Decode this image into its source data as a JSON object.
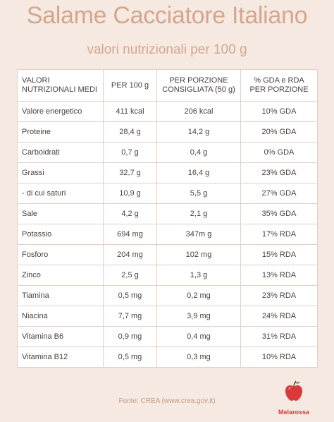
{
  "header": {
    "title": "Salame Cacciatore Italiano",
    "subtitle": "valori nutrizionali per 100 g"
  },
  "table": {
    "columns": [
      "VALORI NUTRIZIONALI MEDI",
      "PER 100 g",
      "PER PORZIONE CONSIGLIATA (50 g)",
      "% GDA e RDA PER PORZIONE"
    ],
    "rows": [
      [
        "Valore energetico",
        "411 kcal",
        "206 kcal",
        "10% GDA"
      ],
      [
        "Proteine",
        "28,4 g",
        "14,2 g",
        "20% GDA"
      ],
      [
        "Carboidrati",
        "0,7 g",
        "0,4 g",
        "0% GDA"
      ],
      [
        "Grassi",
        "32,7 g",
        "16,4 g",
        "23% GDA"
      ],
      [
        "- di cui saturi",
        "10,9 g",
        "5,5 g",
        "27% GDA"
      ],
      [
        "Sale",
        "4,2 g",
        "2,1 g",
        "35% GDA"
      ],
      [
        "Potassio",
        "694 mg",
        "347m g",
        "17% RDA"
      ],
      [
        "Fosforo",
        "204 mg",
        "102 mg",
        "15% RDA"
      ],
      [
        "Zinco",
        "2,5 g",
        "1,3 g",
        "13% RDA"
      ],
      [
        "Tiamina",
        "0,5 mg",
        "0,2 mg",
        "23% RDA"
      ],
      [
        "Niacina",
        "7,7 mg",
        "3,9 mg",
        "24% RDA"
      ],
      [
        "Vitamina B6",
        "0,9 mg",
        "0,4 mg",
        "31% RDA"
      ],
      [
        "Vitamina B12",
        "0,5 mg",
        "0,3 mg",
        "10% RDA"
      ]
    ]
  },
  "footer": {
    "source": "Fonte: CREA (www.crea.gov.it)",
    "logo_text": "Melarossa",
    "logo_icon": "apple-logo-icon"
  },
  "colors": {
    "background": "#f6e9e2",
    "title": "#d3a78e",
    "table_background": "#ffffff",
    "border": "#e3cfc5",
    "brand_red": "#d9393a"
  }
}
